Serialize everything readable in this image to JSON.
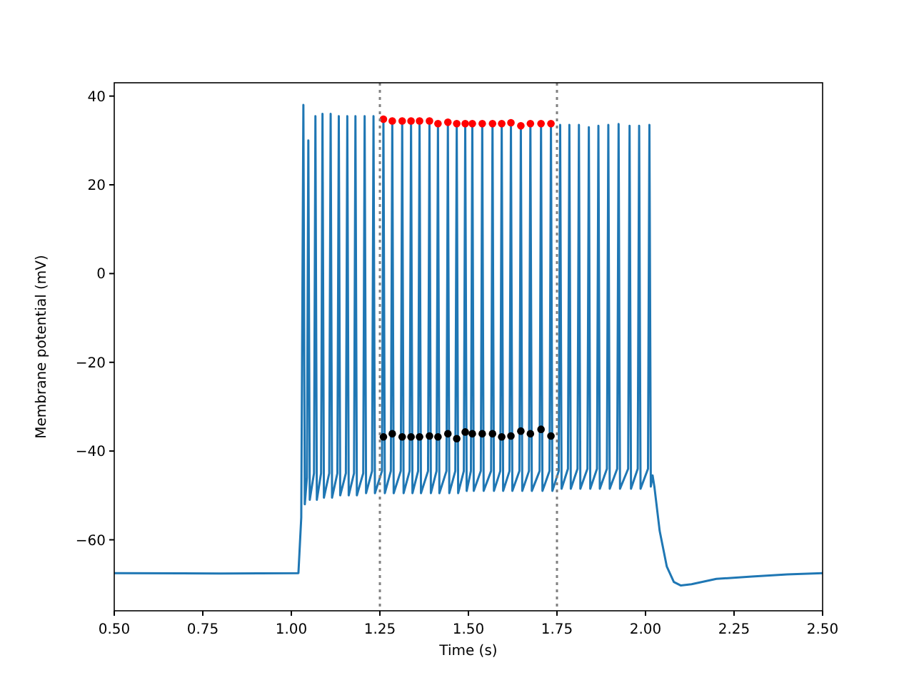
{
  "chart_data": {
    "type": "line",
    "xlabel": "Time (s)",
    "ylabel": "Membrane potential (mV)",
    "xlim": [
      0.5,
      2.5
    ],
    "ylim": [
      -76,
      43
    ],
    "xticks": [
      {
        "value": 0.5,
        "label": "0.50"
      },
      {
        "value": 0.75,
        "label": "0.75"
      },
      {
        "value": 1,
        "label": "1.00"
      },
      {
        "value": 1.25,
        "label": "1.25"
      },
      {
        "value": 1.5,
        "label": "1.50"
      },
      {
        "value": 1.75,
        "label": "1.75"
      },
      {
        "value": 2,
        "label": "2.00"
      },
      {
        "value": 2.25,
        "label": "2.25"
      },
      {
        "value": 2.5,
        "label": "2.50"
      }
    ],
    "yticks": [
      {
        "value": -60,
        "label": "−60"
      },
      {
        "value": -40,
        "label": "−40"
      },
      {
        "value": -20,
        "label": "−20"
      },
      0,
      20,
      40
    ],
    "grid": false,
    "ref_lines": [
      {
        "axis": "x",
        "value": 1.25,
        "color": "#808080",
        "line_style": "dotted"
      },
      {
        "axis": "x",
        "value": 1.75,
        "color": "#808080",
        "line_style": "dotted"
      }
    ],
    "series": [
      {
        "color": "#1f77b4",
        "line_style": "solid",
        "marker": "none",
        "x": [
          0.5,
          0.8,
          1.02,
          1.028,
          1.034,
          1.038,
          1.044,
          1.048,
          1.052,
          1.064,
          1.068,
          1.072,
          1.084,
          1.088,
          1.092,
          1.107,
          1.111,
          1.115,
          1.13,
          1.134,
          1.138,
          1.154,
          1.158,
          1.162,
          1.177,
          1.181,
          1.185,
          1.203,
          1.207,
          1.211,
          1.228,
          1.232,
          1.236,
          1.256,
          1.26,
          1.264,
          1.281,
          1.285,
          1.289,
          1.309,
          1.313,
          1.317,
          1.334,
          1.338,
          1.342,
          1.358,
          1.362,
          1.366,
          1.386,
          1.39,
          1.394,
          1.41,
          1.414,
          1.418,
          1.438,
          1.442,
          1.446,
          1.463,
          1.467,
          1.471,
          1.487,
          1.491,
          1.495,
          1.507,
          1.511,
          1.515,
          1.535,
          1.539,
          1.543,
          1.564,
          1.568,
          1.572,
          1.59,
          1.594,
          1.598,
          1.616,
          1.62,
          1.624,
          1.644,
          1.648,
          1.652,
          1.671,
          1.675,
          1.679,
          1.701,
          1.705,
          1.709,
          1.729,
          1.733,
          1.737,
          1.755,
          1.759,
          1.763,
          1.781,
          1.785,
          1.789,
          1.808,
          1.812,
          1.816,
          1.836,
          1.84,
          1.844,
          1.863,
          1.867,
          1.871,
          1.891,
          1.895,
          1.899,
          1.92,
          1.924,
          1.928,
          1.951,
          1.955,
          1.959,
          1.978,
          1.982,
          1.986,
          2.007,
          2.011,
          2.015,
          2.02,
          2.025,
          2.04,
          2.06,
          2.08,
          2.1,
          2.13,
          2.2,
          2.3,
          2.4,
          2.5
        ],
        "values": [
          -67.5,
          -67.6,
          -67.5,
          -55,
          38,
          -52,
          -46,
          30,
          -51,
          -45,
          35.5,
          -51,
          -45,
          36,
          -50.5,
          -45,
          36,
          -50.5,
          -45,
          35.5,
          -50,
          -45,
          35.5,
          -50,
          -45,
          35.5,
          -50,
          -45,
          35.5,
          -49.5,
          -44.5,
          35.5,
          -49.5,
          -44.5,
          34.8,
          -49.5,
          -44.5,
          34.4,
          -49.5,
          -44.5,
          34.4,
          -49.5,
          -44.5,
          34.4,
          -49.5,
          -44.5,
          34.4,
          -49.5,
          -44.5,
          34.4,
          -49.5,
          -44.5,
          33.8,
          -49.5,
          -44.5,
          34.1,
          -49.5,
          -44.5,
          33.8,
          -49.5,
          -44.5,
          33.8,
          -49,
          -44.5,
          33.8,
          -49,
          -44.5,
          33.8,
          -49,
          -44.5,
          33.8,
          -49,
          -44.5,
          33.8,
          -49,
          -44.5,
          34,
          -49,
          -44.5,
          33.3,
          -49,
          -44.5,
          33.8,
          -49,
          -44.5,
          33.8,
          -49,
          -44.5,
          33.8,
          -49,
          -44.5,
          33.5,
          -48.5,
          -44,
          33.5,
          -48.5,
          -44,
          33.5,
          -48.5,
          -44,
          33,
          -48.5,
          -44,
          33.3,
          -48.5,
          -44,
          33.5,
          -48.5,
          -44,
          33.7,
          -48.5,
          -44,
          33.3,
          -48.5,
          -44,
          33.3,
          -48.5,
          -44,
          33.5,
          -48,
          -45.5,
          -48,
          -58,
          -66,
          -69.5,
          -70.3,
          -70,
          -68.8,
          -68.3,
          -67.8,
          -67.5
        ]
      },
      {
        "type": "scatter",
        "color": "#ff0000",
        "marker": "circle",
        "x": [
          1.26,
          1.285,
          1.313,
          1.338,
          1.362,
          1.39,
          1.414,
          1.442,
          1.467,
          1.491,
          1.511,
          1.539,
          1.568,
          1.594,
          1.62,
          1.648,
          1.675,
          1.705,
          1.733
        ],
        "values": [
          34.8,
          34.4,
          34.4,
          34.4,
          34.4,
          34.4,
          33.8,
          34.1,
          33.8,
          33.8,
          33.8,
          33.8,
          33.8,
          33.8,
          34,
          33.3,
          33.8,
          33.8,
          33.8
        ]
      },
      {
        "type": "scatter",
        "color": "#000000",
        "marker": "circle",
        "x": [
          1.26,
          1.285,
          1.313,
          1.338,
          1.362,
          1.39,
          1.414,
          1.442,
          1.467,
          1.491,
          1.511,
          1.539,
          1.568,
          1.594,
          1.62,
          1.648,
          1.675,
          1.705,
          1.733
        ],
        "values": [
          -36.8,
          -36.1,
          -36.8,
          -36.8,
          -36.8,
          -36.6,
          -36.8,
          -36.1,
          -37.2,
          -35.7,
          -36.1,
          -36.1,
          -36.1,
          -36.8,
          -36.6,
          -35.5,
          -36.1,
          -35.1,
          -36.6
        ]
      }
    ]
  }
}
